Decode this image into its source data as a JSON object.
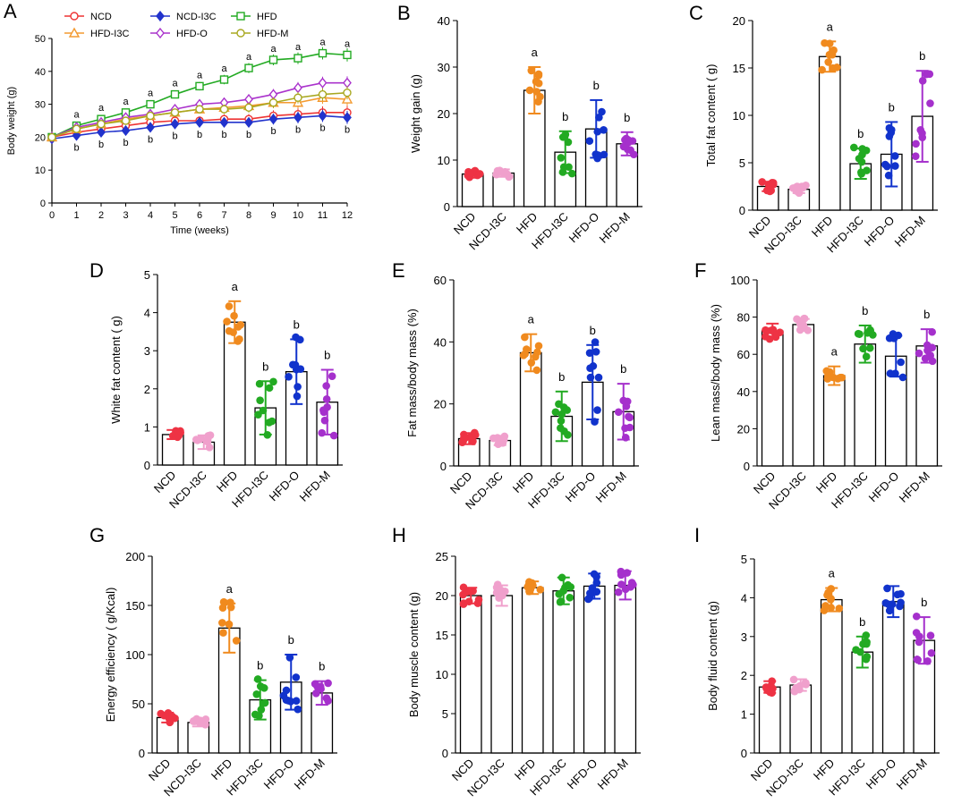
{
  "figure": "multi-panel body composition",
  "chart_data": [
    {
      "panel": "A",
      "type": "line",
      "title": "",
      "xlabel": "Time (weeks)",
      "ylabel": "Body weight (g)",
      "xlim": [
        0,
        12
      ],
      "ylim": [
        0,
        50
      ],
      "xticks": [
        "0",
        "1",
        "2",
        "3",
        "4",
        "5",
        "6",
        "7",
        "8",
        "9",
        "10",
        "11",
        "12"
      ],
      "yticks": [
        "0",
        "10",
        "20",
        "30",
        "40",
        "50"
      ],
      "x": [
        0,
        1,
        2,
        3,
        4,
        5,
        6,
        7,
        8,
        9,
        10,
        11,
        12
      ],
      "legend": [
        "NCD",
        "NCD-I3C",
        "HFD",
        "HFD-I3C",
        "HFD-O",
        "HFD-M"
      ],
      "series": [
        {
          "name": "NCD",
          "color": "#ee3333",
          "marker": "circle",
          "values": [
            20,
            21.5,
            22.5,
            23.5,
            24.5,
            25,
            25,
            25.5,
            25.5,
            26.5,
            27,
            27.5,
            27.5
          ]
        },
        {
          "name": "NCD-I3C",
          "color": "#2233cc",
          "marker": "diamond",
          "values": [
            19.5,
            20.5,
            21.5,
            22,
            23,
            24,
            24.5,
            24.5,
            24.5,
            25.5,
            26,
            26.5,
            26
          ]
        },
        {
          "name": "HFD",
          "color": "#22aa22",
          "marker": "square",
          "values": [
            20,
            23.5,
            25.5,
            27.5,
            30,
            33,
            35.5,
            37.5,
            41,
            43.5,
            44,
            45.5,
            45
          ]
        },
        {
          "name": "HFD-I3C",
          "color": "#f39a30",
          "marker": "triangle",
          "values": [
            20,
            22.5,
            24,
            25.5,
            26.5,
            27.5,
            28.5,
            29,
            29.5,
            30.5,
            30.5,
            32,
            31.5
          ]
        },
        {
          "name": "HFD-O",
          "color": "#aa33cc",
          "marker": "diamond",
          "values": [
            20,
            23,
            24.5,
            26,
            27,
            28.5,
            30,
            30.5,
            31.5,
            33,
            35,
            36.5,
            36.5
          ]
        },
        {
          "name": "HFD-M",
          "color": "#a8a820",
          "marker": "circle",
          "values": [
            20,
            22.5,
            24,
            25,
            26.5,
            27.5,
            28.5,
            28.5,
            29,
            30.5,
            32,
            33,
            33.5
          ]
        }
      ],
      "annotations": [
        {
          "week": 1,
          "top": "a",
          "bottom": "b"
        },
        {
          "week": 2,
          "top": "a",
          "bottom": "b"
        },
        {
          "week": 3,
          "top": "a",
          "bottom": "b"
        },
        {
          "week": 4,
          "top": "a",
          "bottom": "b"
        },
        {
          "week": 5,
          "top": "a",
          "bottom": "b"
        },
        {
          "week": 6,
          "top": "a",
          "bottom": "b"
        },
        {
          "week": 7,
          "top": "a",
          "bottom": "b"
        },
        {
          "week": 8,
          "top": "a",
          "bottom": "b"
        },
        {
          "week": 9,
          "top": "a",
          "bottom": "b"
        },
        {
          "week": 10,
          "top": "a",
          "bottom": "b"
        },
        {
          "week": 11,
          "top": "a",
          "bottom": "b"
        },
        {
          "week": 12,
          "top": "a",
          "bottom": "b"
        }
      ]
    },
    {
      "panel": "B",
      "type": "bar",
      "ylabel": "Weight gain (g)",
      "categories": [
        "NCD",
        "NCD-I3C",
        "HFD",
        "HFD-I3C",
        "HFD-O",
        "HFD-M"
      ],
      "values": [
        7,
        7.2,
        25,
        11.7,
        16.7,
        13.5
      ],
      "sd": [
        0.8,
        0.8,
        5,
        4.5,
        6.2,
        2.5
      ],
      "letters": [
        "",
        "",
        "a",
        "b",
        "b",
        "b"
      ],
      "ylim": [
        0,
        40
      ],
      "yticks": [
        "0",
        "10",
        "20",
        "30",
        "40"
      ]
    },
    {
      "panel": "C",
      "type": "bar",
      "ylabel": "Total fat content ( g)",
      "categories": [
        "NCD",
        "NCD-I3C",
        "HFD",
        "HFD-I3C",
        "HFD-O",
        "HFD-M"
      ],
      "values": [
        2.5,
        2.2,
        16.2,
        4.9,
        5.9,
        9.9
      ],
      "sd": [
        0.5,
        0.4,
        1.6,
        1.6,
        3.4,
        4.8
      ],
      "letters": [
        "",
        "",
        "a",
        "b",
        "b",
        "b"
      ],
      "ylim": [
        0,
        20
      ],
      "yticks": [
        "0",
        "5",
        "10",
        "15",
        "20"
      ]
    },
    {
      "panel": "D",
      "type": "bar",
      "ylabel": "White fat content ( g)",
      "categories": [
        "NCD",
        "NCD-I3C",
        "HFD",
        "HFD-I3C",
        "HFD-O",
        "HFD-M"
      ],
      "values": [
        0.8,
        0.6,
        3.75,
        1.5,
        2.45,
        1.65
      ],
      "sd": [
        0.12,
        0.18,
        0.55,
        0.7,
        0.85,
        0.85
      ],
      "letters": [
        "",
        "",
        "a",
        "b",
        "b",
        "b"
      ],
      "ylim": [
        0,
        5
      ],
      "yticks": [
        "0",
        "1",
        "2",
        "3",
        "4",
        "5"
      ]
    },
    {
      "panel": "E",
      "type": "bar",
      "ylabel": "Fat mass/body mass (%)",
      "categories": [
        "NCD",
        "NCD-I3C",
        "HFD",
        "HFD-I3C",
        "HFD-O",
        "HFD-M"
      ],
      "values": [
        8.8,
        8.2,
        36.5,
        16,
        27,
        17.5
      ],
      "sd": [
        1.8,
        1.5,
        6,
        8,
        12,
        9
      ],
      "letters": [
        "",
        "",
        "a",
        "b",
        "b",
        "b"
      ],
      "ylim": [
        0,
        60
      ],
      "yticks": [
        "0",
        "20",
        "40",
        "60"
      ]
    },
    {
      "panel": "F",
      "type": "bar",
      "ylabel": "Lean mass/body mass (%)",
      "categories": [
        "NCD",
        "NCD-I3C",
        "HFD",
        "HFD-I3C",
        "HFD-O",
        "HFD-M"
      ],
      "values": [
        72.5,
        76,
        48.5,
        65.5,
        59,
        64.5
      ],
      "sd": [
        4,
        3,
        5,
        10,
        11,
        9
      ],
      "letters": [
        "",
        "",
        "a",
        "b",
        "",
        "b"
      ],
      "ylim": [
        0,
        100
      ],
      "yticks": [
        "0",
        "20",
        "40",
        "60",
        "80",
        "100"
      ]
    },
    {
      "panel": "G",
      "type": "bar",
      "ylabel": "Energy efficiency ( g/Kcal)",
      "categories": [
        "NCD",
        "NCD-I3C",
        "HFD",
        "HFD-I3C",
        "HFD-O",
        "HFD-M"
      ],
      "values": [
        36,
        31,
        127,
        54,
        72,
        61
      ],
      "sd": [
        5,
        4,
        25,
        20,
        28,
        12
      ],
      "letters": [
        "",
        "",
        "a",
        "b",
        "b",
        "b"
      ],
      "ylim": [
        0,
        200
      ],
      "yticks": [
        "0",
        "50",
        "100",
        "150",
        "200"
      ]
    },
    {
      "panel": "H",
      "type": "bar",
      "ylabel": "Body muscle content (g)",
      "categories": [
        "NCD",
        "NCD-I3C",
        "HFD",
        "HFD-I3C",
        "HFD-O",
        "HFD-M"
      ],
      "values": [
        20,
        20,
        21,
        20.6,
        21.2,
        21.3
      ],
      "sd": [
        1,
        1.3,
        0.8,
        1.7,
        1.6,
        1.8
      ],
      "letters": [
        "",
        "",
        "",
        "",
        "",
        ""
      ],
      "ylim": [
        0,
        25
      ],
      "yticks": [
        "0",
        "5",
        "10",
        "15",
        "20",
        "25"
      ]
    },
    {
      "panel": "I",
      "type": "bar",
      "ylabel": "Body fluid content (g)",
      "categories": [
        "NCD",
        "NCD-I3C",
        "HFD",
        "HFD-I3C",
        "HFD-O",
        "HFD-M"
      ],
      "values": [
        1.7,
        1.75,
        3.95,
        2.6,
        3.9,
        2.9
      ],
      "sd": [
        0.15,
        0.15,
        0.3,
        0.4,
        0.4,
        0.6
      ],
      "letters": [
        "",
        "",
        "a",
        "b",
        "",
        "b"
      ],
      "ylim": [
        0,
        5
      ],
      "yticks": [
        "0",
        "1",
        "2",
        "3",
        "4",
        "5"
      ]
    }
  ],
  "bar_colors": [
    "#ee3344",
    "#f0a0cc",
    "#f08a1e",
    "#22aa22",
    "#1133cc",
    "#a530cc"
  ]
}
